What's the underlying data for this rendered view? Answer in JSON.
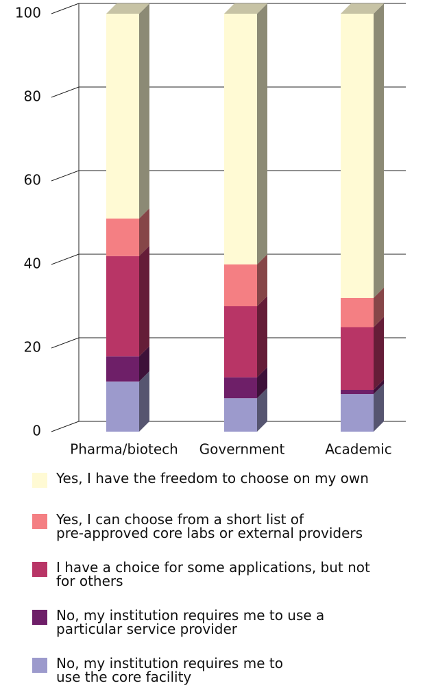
{
  "chart_data": {
    "type": "bar",
    "stacked": true,
    "three_d": true,
    "categories": [
      "Pharma/biotech",
      "Government",
      "Academic"
    ],
    "series": [
      {
        "name": "Yes, I have the freedom to choose on my own",
        "color": "#fffad4",
        "values": [
          49,
          60,
          68
        ]
      },
      {
        "name": "Yes, I can choose from a short list of\npre-approved core labs or external providers",
        "color": "#f47f83",
        "values": [
          9,
          10,
          7
        ]
      },
      {
        "name": "I have a choice for some applications, but not\nfor others",
        "color": "#b83566",
        "values": [
          24,
          17,
          15
        ]
      },
      {
        "name": "No, my institution requires me to use a\nparticular service provider",
        "color": "#6e1f68",
        "values": [
          6,
          5,
          1
        ]
      },
      {
        "name": "No, my institution requires me to\nuse the core facility",
        "color": "#9c9acc",
        "values": [
          12,
          8,
          9
        ]
      }
    ],
    "ylim": [
      0,
      100
    ],
    "yticks": [
      0,
      20,
      40,
      60,
      80,
      100
    ],
    "grid": true,
    "legend": "bottom"
  }
}
